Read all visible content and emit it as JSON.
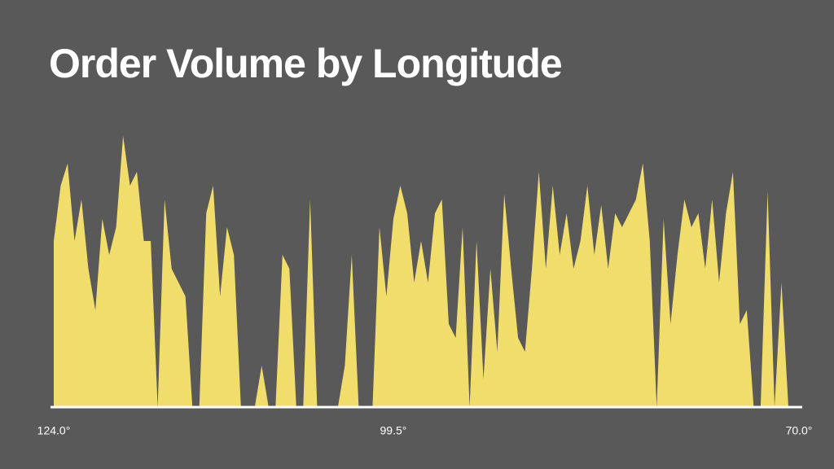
{
  "chart_data": {
    "type": "area",
    "title": "Order Volume by Longitude",
    "x": [
      124.0,
      123.5,
      123.0,
      122.5,
      122.0,
      121.5,
      121.0,
      120.5,
      120.0,
      119.5,
      119.0,
      118.5,
      118.0,
      117.5,
      117.0,
      116.5,
      116.0,
      115.5,
      115.0,
      114.5,
      114.0,
      113.5,
      113.0,
      112.5,
      112.0,
      111.5,
      111.0,
      110.5,
      110.0,
      109.5,
      109.0,
      108.5,
      108.0,
      107.5,
      107.0,
      106.5,
      106.0,
      105.5,
      105.0,
      104.5,
      104.0,
      103.5,
      103.0,
      102.5,
      102.0,
      101.5,
      101.0,
      100.5,
      100.0,
      99.5,
      99.0,
      98.5,
      98.0,
      97.5,
      97.0,
      96.5,
      96.0,
      95.5,
      95.0,
      94.5,
      94.0,
      93.5,
      93.0,
      92.5,
      92.0,
      91.5,
      91.0,
      90.5,
      90.0,
      89.5,
      89.0,
      88.5,
      88.0,
      87.5,
      87.0,
      86.5,
      86.0,
      85.5,
      85.0,
      84.5,
      84.0,
      83.5,
      83.0,
      82.5,
      82.0,
      81.5,
      81.0,
      80.5,
      80.0,
      79.5,
      79.0,
      78.5,
      78.0,
      77.5,
      77.0,
      76.5,
      76.0,
      75.5,
      75.0,
      74.5,
      74.0,
      73.5,
      73.0,
      72.5,
      72.0,
      71.5,
      71.0,
      70.5,
      70.0
    ],
    "values": [
      60,
      80,
      88,
      60,
      75,
      50,
      35,
      68,
      55,
      65,
      98,
      80,
      85,
      60,
      60,
      0,
      75,
      50,
      45,
      40,
      0,
      0,
      70,
      80,
      40,
      65,
      55,
      0,
      0,
      0,
      15,
      0,
      0,
      55,
      50,
      0,
      0,
      75,
      0,
      0,
      0,
      0,
      15,
      55,
      0,
      0,
      0,
      65,
      40,
      68,
      80,
      70,
      45,
      60,
      45,
      70,
      75,
      30,
      25,
      65,
      0,
      60,
      10,
      50,
      20,
      77,
      50,
      25,
      20,
      50,
      85,
      50,
      80,
      55,
      70,
      50,
      60,
      80,
      55,
      73,
      50,
      70,
      65,
      70,
      75,
      88,
      60,
      0,
      68,
      30,
      55,
      75,
      65,
      70,
      50,
      75,
      45,
      70,
      85,
      30,
      35,
      0,
      0,
      78,
      0,
      45,
      0,
      0,
      0
    ],
    "color": "#f1dd6c",
    "xlim": [
      124,
      70
    ],
    "xticks": [
      {
        "value": 124,
        "label": "124.0°"
      },
      {
        "value": 99.5,
        "label": "99.5°"
      },
      {
        "value": 70,
        "label": "70.0°"
      }
    ],
    "ylim": [
      0,
      100
    ]
  }
}
